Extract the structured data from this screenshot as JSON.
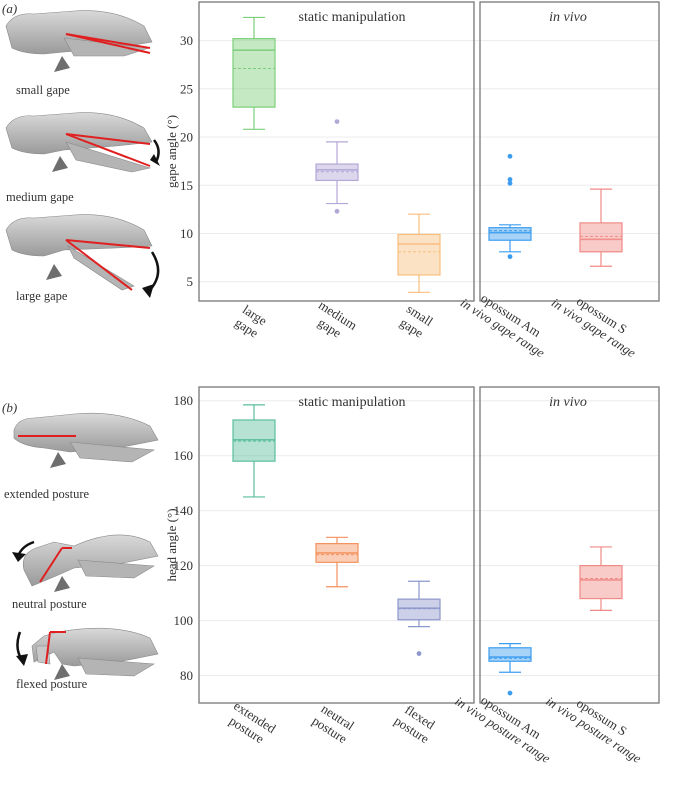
{
  "panels": [
    {
      "letter": "(a)",
      "skull_captions": [
        "small gape",
        "medium gape",
        "large gape"
      ],
      "chart_data": {
        "type": "box",
        "ylabel": "gape angle (°)",
        "ylim": [
          3,
          34
        ],
        "yticks": [
          5,
          10,
          15,
          20,
          25,
          30
        ],
        "sections": [
          {
            "title": "static manipulation",
            "italic": false
          },
          {
            "title": "in vivo",
            "italic": true
          }
        ],
        "categories": [
          [
            "large",
            "gape"
          ],
          [
            "medium",
            "gape"
          ],
          [
            "small",
            "gape"
          ],
          [
            "opossum Am",
            "in vivo gape range"
          ],
          [
            "opossum S",
            "in vivo gape range"
          ]
        ],
        "boxes": [
          {
            "section": 0,
            "min": 20.8,
            "q1": 23.1,
            "median": 29.0,
            "mean": 27.1,
            "q3": 30.2,
            "max": 32.4,
            "outliers": [],
            "color": "#7ccf7a"
          },
          {
            "section": 0,
            "min": 13.1,
            "q1": 15.5,
            "median": 16.6,
            "mean": 16.4,
            "q3": 17.2,
            "max": 19.5,
            "outliers": [
              12.3,
              21.6
            ],
            "color": "#b3a7d6"
          },
          {
            "section": 0,
            "min": 3.9,
            "q1": 5.7,
            "median": 8.9,
            "mean": 8.1,
            "q3": 9.9,
            "max": 12.0,
            "outliers": [],
            "color": "#f8be7e"
          },
          {
            "section": 1,
            "min": 8.1,
            "q1": 9.3,
            "median": 10.1,
            "mean": 10.3,
            "q3": 10.6,
            "max": 10.9,
            "outliers": [
              7.6,
              15.2,
              15.6,
              18.0
            ],
            "color": "#3c9df0"
          },
          {
            "section": 1,
            "min": 6.6,
            "q1": 8.1,
            "median": 9.4,
            "mean": 9.7,
            "q3": 11.1,
            "max": 14.6,
            "outliers": [],
            "color": "#f08a86"
          }
        ]
      }
    },
    {
      "letter": "(b)",
      "skull_captions": [
        "extended posture",
        "neutral posture",
        "flexed posture"
      ],
      "chart_data": {
        "type": "box",
        "ylabel": "head angle (°)",
        "ylim": [
          70,
          185
        ],
        "yticks": [
          80,
          100,
          120,
          140,
          160,
          180
        ],
        "sections": [
          {
            "title": "static manipulation",
            "italic": false
          },
          {
            "title": "in vivo",
            "italic": true
          }
        ],
        "categories": [
          [
            "extended",
            "posture"
          ],
          [
            "neutral",
            "posture"
          ],
          [
            "flexed",
            "posture"
          ],
          [
            "opossum Am",
            "in vivo posture range"
          ],
          [
            "opossum S",
            "in vivo  posture range"
          ]
        ],
        "boxes": [
          {
            "section": 0,
            "min": 145.0,
            "q1": 158.0,
            "median": 165.8,
            "mean": 165.3,
            "q3": 173.0,
            "max": 178.5,
            "outliers": [],
            "color": "#5bbf9c"
          },
          {
            "section": 0,
            "min": 112.3,
            "q1": 121.2,
            "median": 124.6,
            "mean": 124.0,
            "q3": 128.0,
            "max": 130.3,
            "outliers": [],
            "color": "#f3915d"
          },
          {
            "section": 0,
            "min": 97.8,
            "q1": 100.3,
            "median": 104.5,
            "mean": 104.3,
            "q3": 107.8,
            "max": 114.3,
            "outliers": [
              88.0
            ],
            "color": "#8d97cc"
          },
          {
            "section": 1,
            "min": 81.2,
            "q1": 85.2,
            "median": 86.7,
            "mean": 86.3,
            "q3": 90.1,
            "max": 91.6,
            "outliers": [
              73.6
            ],
            "color": "#3c9df0"
          },
          {
            "section": 1,
            "min": 103.7,
            "q1": 108.0,
            "median": 114.8,
            "mean": 115.3,
            "q3": 120.0,
            "max": 126.8,
            "outliers": [],
            "color": "#f08a86"
          }
        ]
      }
    }
  ]
}
